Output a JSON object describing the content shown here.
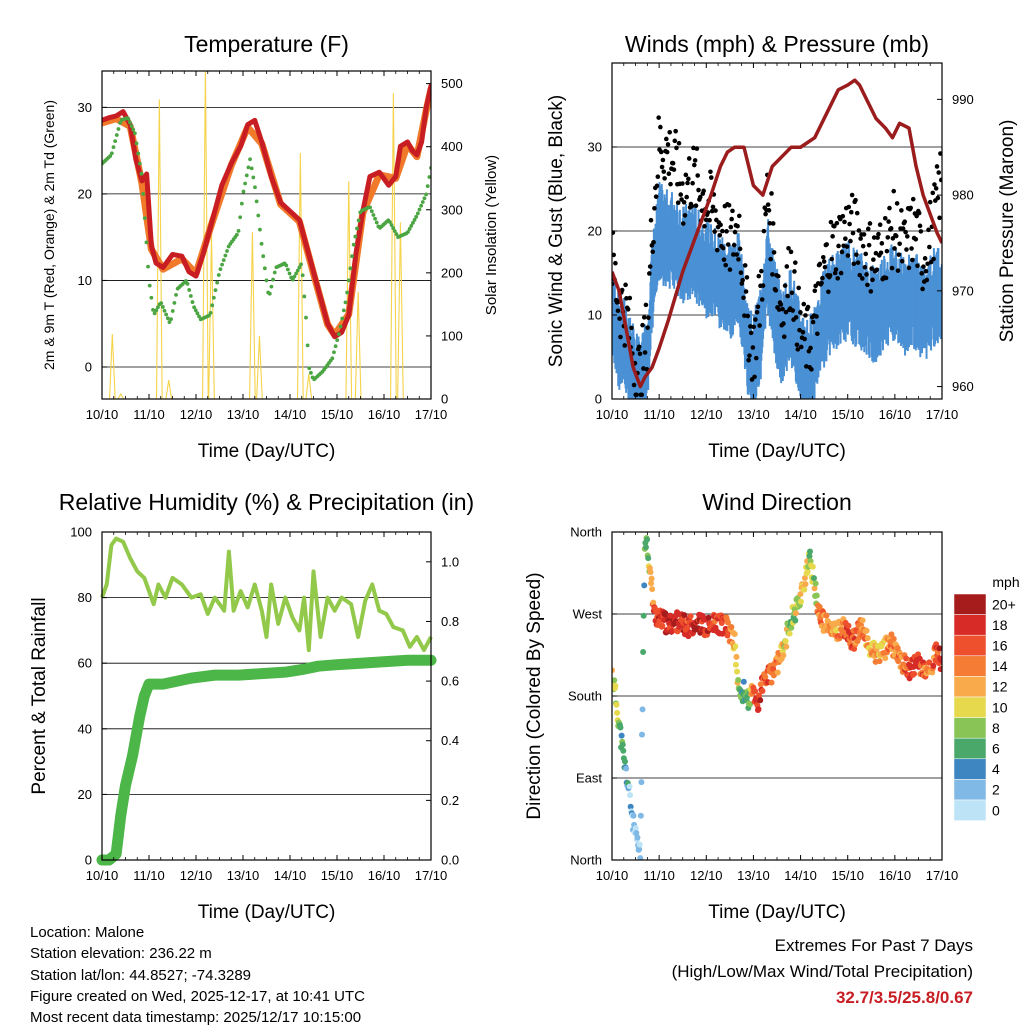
{
  "chart_data": [
    {
      "type": "line",
      "title": "Temperature (F)",
      "xlabel": "Time (Day/UTC)",
      "ylabel": "2m & 9m T (Red, Orange) & 2m Td (Green)",
      "ylabel_right": "Solar Insolation (Yellow)",
      "x_ticks": [
        "10/10",
        "11/10",
        "12/10",
        "13/10",
        "14/10",
        "15/10",
        "16/10",
        "17/10"
      ],
      "xlim": [
        0,
        7
      ],
      "ylim": [
        -3.7,
        34.2
      ],
      "y_ticks": [
        0,
        10,
        20,
        30
      ],
      "ylim_right": [
        0,
        520
      ],
      "y_ticks_right": [
        0,
        100,
        200,
        300,
        400,
        500
      ],
      "grid": "horizontal",
      "series": [
        {
          "name": "2m T",
          "color": "#c81e23",
          "x": [
            0,
            0.15,
            0.3,
            0.45,
            0.6,
            0.72,
            0.85,
            0.95,
            1.05,
            1.15,
            1.3,
            1.5,
            1.7,
            1.85,
            2.0,
            2.15,
            2.35,
            2.55,
            2.75,
            2.95,
            3.1,
            3.25,
            3.4,
            3.6,
            3.8,
            4.0,
            4.2,
            4.35,
            4.5,
            4.65,
            4.8,
            4.95,
            5.1,
            5.25,
            5.4,
            5.55,
            5.7,
            5.9,
            6.1,
            6.25,
            6.35,
            6.5,
            6.6,
            6.7,
            6.8,
            6.9,
            7.0
          ],
          "y": [
            28.5,
            28.8,
            29,
            29.5,
            28,
            24,
            21.5,
            22.3,
            14,
            12,
            11.5,
            13,
            12.8,
            11,
            10.5,
            13,
            17,
            21,
            23.5,
            25.5,
            28,
            28.5,
            26,
            22,
            19,
            18,
            17,
            14,
            11,
            8,
            5,
            3.5,
            4,
            6,
            13,
            18,
            22,
            22.5,
            21,
            22,
            25.5,
            26,
            25,
            24.5,
            26,
            30,
            32.5
          ]
        },
        {
          "name": "9m T",
          "color": "#f07a2a",
          "x": [
            0,
            0.3,
            0.6,
            0.85,
            1.05,
            1.3,
            1.7,
            2.0,
            2.35,
            2.75,
            3.1,
            3.4,
            3.8,
            4.2,
            4.5,
            4.8,
            4.95,
            5.25,
            5.55,
            5.9,
            6.25,
            6.5,
            6.7,
            6.9,
            7.0
          ],
          "y": [
            28.2,
            28.7,
            27.8,
            21.2,
            13.6,
            11.3,
            12.5,
            10.8,
            16.8,
            23.3,
            27.7,
            25.8,
            18.8,
            16.8,
            10.8,
            4.9,
            3.7,
            6.1,
            17.8,
            22.2,
            21.8,
            25.7,
            24.3,
            29.7,
            32.1
          ]
        },
        {
          "name": "2m Td",
          "color": "#4ba543",
          "dotted": true,
          "x": [
            0,
            0.2,
            0.4,
            0.55,
            0.7,
            0.85,
            1.0,
            1.1,
            1.25,
            1.45,
            1.6,
            1.8,
            1.95,
            2.1,
            2.3,
            2.5,
            2.7,
            2.9,
            3.0,
            3.15,
            3.25,
            3.4,
            3.55,
            3.7,
            3.9,
            4.05,
            4.15,
            4.25,
            4.35,
            4.4,
            4.5,
            4.7,
            4.9,
            5.05,
            5.2,
            5.35,
            5.5,
            5.7,
            5.9,
            6.1,
            6.3,
            6.5,
            6.7,
            6.9,
            7.0
          ],
          "y": [
            23.5,
            24.5,
            28.5,
            28.8,
            27,
            22,
            10,
            6,
            7.5,
            5,
            9,
            10,
            7,
            5.5,
            6,
            11,
            14,
            15.5,
            20,
            24,
            21,
            14,
            8,
            11.5,
            12,
            10,
            11,
            12,
            5,
            0,
            -1.5,
            -0.5,
            1,
            4,
            8,
            14,
            18,
            18.5,
            16,
            17,
            15,
            15.5,
            17.5,
            20,
            23
          ]
        }
      ],
      "solar_peaks": [
        {
          "x": 0.22,
          "value": 103
        },
        {
          "x": 0.4,
          "value": 8
        },
        {
          "x": 1.22,
          "value": 475
        },
        {
          "x": 1.42,
          "value": 30
        },
        {
          "x": 2.2,
          "value": 527
        },
        {
          "x": 2.33,
          "value": 260
        },
        {
          "x": 3.2,
          "value": 265
        },
        {
          "x": 3.35,
          "value": 100
        },
        {
          "x": 4.22,
          "value": 390
        },
        {
          "x": 4.4,
          "value": 40
        },
        {
          "x": 5.25,
          "value": 345
        },
        {
          "x": 5.45,
          "value": 170
        },
        {
          "x": 6.2,
          "value": 485
        },
        {
          "x": 6.35,
          "value": 280
        }
      ]
    },
    {
      "type": "line",
      "title": "Winds (mph) & Pressure (mb)",
      "xlabel": "Time (Day/UTC)",
      "ylabel": "Sonic Wind & Gust (Blue, Black)",
      "ylabel_right": "Station Pressure (Maroon)",
      "x_ticks": [
        "10/10",
        "11/10",
        "12/10",
        "13/10",
        "14/10",
        "15/10",
        "16/10",
        "17/10"
      ],
      "xlim": [
        0,
        7
      ],
      "ylim": [
        0,
        40
      ],
      "y_ticks": [
        0,
        10,
        20,
        30
      ],
      "ylim_right": [
        958.7,
        993.8
      ],
      "y_ticks_right": [
        960,
        970,
        980,
        990
      ],
      "grid": "horizontal",
      "series": [
        {
          "name": "Gust",
          "color": "#000000",
          "style": "dots",
          "x": [
            0,
            0.15,
            0.3,
            0.45,
            0.6,
            0.75,
            0.85,
            1.0,
            1.15,
            1.3,
            1.5,
            1.7,
            1.9,
            2.1,
            2.3,
            2.5,
            2.7,
            2.85,
            3.0,
            3.15,
            3.3,
            3.45,
            3.6,
            3.8,
            4.0,
            4.2,
            4.4,
            4.6,
            4.8,
            5.0,
            5.2,
            5.4,
            5.6,
            5.8,
            6.0,
            6.2,
            6.4,
            6.6,
            6.8,
            7.0
          ],
          "y": [
            18,
            13,
            12,
            7,
            4,
            10,
            22,
            32,
            31,
            30,
            26,
            28,
            26,
            24,
            22,
            20,
            22,
            12,
            7,
            14,
            26,
            18,
            12,
            17,
            9,
            8,
            14,
            19,
            20,
            22,
            21,
            19,
            18,
            20,
            22,
            19,
            22,
            18,
            22,
            28
          ]
        },
        {
          "name": "Sonic Wind",
          "color": "#4a90d4",
          "style": "band",
          "x": [
            0,
            0.15,
            0.3,
            0.45,
            0.6,
            0.75,
            0.85,
            1.0,
            1.15,
            1.3,
            1.5,
            1.7,
            1.9,
            2.1,
            2.3,
            2.5,
            2.7,
            2.85,
            3.0,
            3.15,
            3.3,
            3.45,
            3.6,
            3.8,
            4.0,
            4.2,
            4.4,
            4.6,
            4.8,
            5.0,
            5.2,
            5.4,
            5.6,
            5.8,
            6.0,
            6.2,
            6.4,
            6.6,
            6.8,
            7.0
          ],
          "y": [
            11,
            8,
            7,
            4,
            2,
            6,
            14,
            21,
            20,
            20,
            18,
            19,
            17,
            16,
            15,
            14,
            15,
            8,
            5,
            9,
            17,
            12,
            8,
            11,
            6,
            5,
            9,
            12,
            13,
            14,
            13,
            12,
            11,
            13,
            14,
            12,
            13,
            11,
            13,
            14
          ]
        },
        {
          "name": "Station Pressure",
          "color": "#9b1c1c",
          "axis": "right",
          "x": [
            0,
            0.15,
            0.3,
            0.45,
            0.6,
            0.7,
            0.85,
            1.0,
            1.2,
            1.5,
            1.8,
            2.1,
            2.3,
            2.45,
            2.6,
            2.8,
            3.0,
            3.2,
            3.4,
            3.6,
            3.8,
            4.0,
            4.3,
            4.6,
            4.8,
            5.0,
            5.15,
            5.25,
            5.4,
            5.6,
            5.8,
            5.95,
            6.1,
            6.3,
            6.45,
            6.6,
            6.75,
            6.9,
            7.0
          ],
          "y": [
            972,
            970,
            966,
            962,
            960,
            961,
            962,
            964,
            967,
            972,
            976,
            980,
            983,
            984.5,
            985,
            985,
            981,
            980,
            983,
            984,
            985,
            985,
            986,
            989,
            991,
            991.5,
            992,
            991.5,
            990,
            988,
            987,
            986,
            987.5,
            987,
            983,
            980,
            978,
            976,
            975
          ]
        }
      ]
    },
    {
      "type": "line",
      "title": "Relative Humidity (%) & Precipitation (in)",
      "xlabel": "Time (Day/UTC)",
      "ylabel": "Percent & Total Rainfall",
      "x_ticks": [
        "10/10",
        "11/10",
        "12/10",
        "13/10",
        "14/10",
        "15/10",
        "16/10",
        "17/10"
      ],
      "xlim": [
        0,
        7
      ],
      "ylim": [
        0,
        100
      ],
      "y_ticks": [
        0,
        20,
        40,
        60,
        80,
        100
      ],
      "ylim_right": [
        0,
        1.1
      ],
      "y_ticks_right": [
        0.0,
        0.2,
        0.4,
        0.6,
        0.8,
        1.0
      ],
      "grid": "horizontal",
      "series": [
        {
          "name": "Relative Humidity",
          "color": "#93c94a",
          "x": [
            0,
            0.1,
            0.2,
            0.3,
            0.45,
            0.6,
            0.75,
            0.9,
            1.0,
            1.1,
            1.2,
            1.35,
            1.5,
            1.7,
            1.9,
            2.1,
            2.25,
            2.4,
            2.6,
            2.7,
            2.8,
            2.95,
            3.1,
            3.25,
            3.4,
            3.5,
            3.6,
            3.75,
            3.9,
            4.05,
            4.2,
            4.3,
            4.4,
            4.5,
            4.65,
            4.8,
            4.95,
            5.1,
            5.3,
            5.45,
            5.6,
            5.75,
            5.9,
            6.05,
            6.2,
            6.4,
            6.55,
            6.7,
            6.85,
            7.0
          ],
          "y": [
            80,
            84,
            96,
            98,
            97,
            92,
            88,
            86,
            82,
            78,
            84,
            80,
            86,
            84,
            80,
            81,
            75,
            80,
            76,
            94,
            76,
            82,
            77,
            84,
            76,
            68,
            84,
            72,
            80,
            74,
            70,
            80,
            64,
            88,
            68,
            80,
            76,
            80,
            78,
            68,
            79,
            84,
            76,
            75,
            71,
            70,
            65,
            68,
            64,
            68
          ]
        },
        {
          "name": "Total Precipitation",
          "color": "#4cb648",
          "axis": "right",
          "x": [
            0,
            0.15,
            0.3,
            0.4,
            0.5,
            0.65,
            0.8,
            0.9,
            1.0,
            1.3,
            1.6,
            1.9,
            2.4,
            2.9,
            3.4,
            3.9,
            4.3,
            4.6,
            5.0,
            5.5,
            6.0,
            6.5,
            7.0
          ],
          "y": [
            0,
            0,
            0.02,
            0.15,
            0.25,
            0.35,
            0.48,
            0.55,
            0.59,
            0.59,
            0.6,
            0.61,
            0.62,
            0.62,
            0.625,
            0.63,
            0.64,
            0.65,
            0.655,
            0.66,
            0.665,
            0.67,
            0.67
          ]
        }
      ]
    },
    {
      "type": "scatter",
      "title": "Wind Direction",
      "xlabel": "Time (Day/UTC)",
      "ylabel": "Direction (Colored By Speed)",
      "x_ticks": [
        "10/10",
        "11/10",
        "12/10",
        "13/10",
        "14/10",
        "15/10",
        "16/10",
        "17/10"
      ],
      "xlim": [
        0,
        7
      ],
      "ylim": [
        0,
        360
      ],
      "y_ticks": [
        {
          "value": 0,
          "label": "North"
        },
        {
          "value": 90,
          "label": "East"
        },
        {
          "value": 180,
          "label": "South"
        },
        {
          "value": 270,
          "label": "West"
        },
        {
          "value": 360,
          "label": "North"
        }
      ],
      "grid": "horizontal",
      "series": [
        {
          "name": "Direction",
          "x": [
            0,
            0.05,
            0.1,
            0.15,
            0.2,
            0.25,
            0.3,
            0.35,
            0.4,
            0.45,
            0.5,
            0.55,
            0.6,
            0.7,
            0.75,
            0.8,
            0.9,
            1.0,
            1.2,
            1.4,
            1.6,
            1.8,
            2.0,
            2.2,
            2.4,
            2.6,
            2.7,
            2.8,
            2.9,
            3.0,
            3.1,
            3.2,
            3.4,
            3.6,
            3.8,
            3.9,
            4.0,
            4.1,
            4.2,
            4.3,
            4.4,
            4.5,
            4.7,
            4.9,
            5.1,
            5.3,
            5.5,
            5.7,
            5.9,
            6.1,
            6.3,
            6.5,
            6.7,
            6.9,
            7.0
          ],
          "y": [
            205,
            190,
            170,
            150,
            130,
            110,
            95,
            80,
            60,
            40,
            25,
            15,
            5,
            360,
            345,
            320,
            270,
            265,
            258,
            262,
            256,
            262,
            255,
            260,
            258,
            240,
            180,
            185,
            175,
            185,
            170,
            195,
            205,
            225,
            265,
            275,
            290,
            310,
            330,
            300,
            270,
            260,
            250,
            255,
            240,
            255,
            230,
            225,
            240,
            220,
            210,
            215,
            205,
            230,
            215
          ],
          "speed": [
            10,
            9,
            9,
            8,
            7,
            5,
            4,
            3,
            2,
            2,
            1,
            1,
            2,
            5,
            7,
            10,
            16,
            18,
            19,
            18,
            17,
            19,
            18,
            17,
            16,
            12,
            8,
            6,
            7,
            14,
            18,
            16,
            15,
            12,
            8,
            9,
            10,
            11,
            8,
            9,
            14,
            13,
            12,
            15,
            16,
            14,
            11,
            12,
            15,
            13,
            16,
            17,
            14,
            16,
            18
          ]
        }
      ],
      "colorbar": {
        "title": "mph",
        "labels": [
          "20+",
          "18",
          "16",
          "14",
          "12",
          "10",
          "8",
          "6",
          "4",
          "2",
          "0"
        ],
        "colors": [
          "#a61c1c",
          "#d62b27",
          "#ee4f2d",
          "#f47c34",
          "#f9ab4c",
          "#e6d94d",
          "#88c556",
          "#4aa86a",
          "#3e86c2",
          "#80b9e6",
          "#bde3f7"
        ]
      }
    }
  ],
  "station_info": {
    "location": "Location: Malone",
    "elevation": "Station elevation: 236.22 m",
    "latlon": "Station lat/lon: 44.8527; -74.3289",
    "created": "Figure created on Wed, 2025-12-17, at 10:41 UTC",
    "recent": "Most recent data timestamp: 2025/12/17 10:15:00"
  },
  "extremes": {
    "title": "Extremes For Past 7 Days",
    "subtitle": "(High/Low/Max Wind/Total Precipitation)",
    "values": "32.7/3.5/25.8/0.67"
  },
  "colors": {
    "grid": "#000000",
    "axis": "#000000"
  }
}
